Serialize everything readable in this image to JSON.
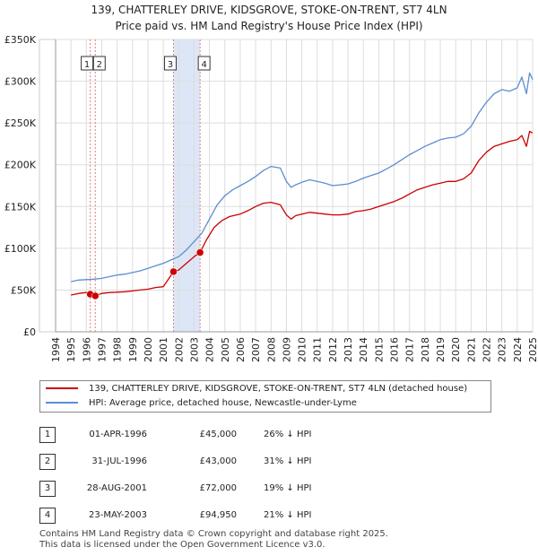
{
  "chart_data": {
    "type": "line",
    "title": "139, CHATTERLEY DRIVE, KIDSGROVE, STOKE-ON-TRENT, ST7 4LN",
    "subtitle": "Price paid vs. HM Land Registry's House Price Index (HPI)",
    "ylim": [
      0,
      350000
    ],
    "xlim": [
      1994,
      2025
    ],
    "y_tick_labels": [
      "£0",
      "£50K",
      "£100K",
      "£150K",
      "£200K",
      "£250K",
      "£300K",
      "£350K"
    ],
    "y_tick_values": [
      0,
      50000,
      100000,
      150000,
      200000,
      250000,
      300000,
      350000
    ],
    "x_tick_labels": [
      "1994",
      "1995",
      "1996",
      "1997",
      "1998",
      "1999",
      "2000",
      "2001",
      "2002",
      "2003",
      "2004",
      "2005",
      "2006",
      "2007",
      "2008",
      "2009",
      "2010",
      "2011",
      "2012",
      "2013",
      "2014",
      "2015",
      "2016",
      "2017",
      "2018",
      "2019",
      "2020",
      "2021",
      "2022",
      "2023",
      "2024",
      "2025"
    ],
    "grid": true,
    "colors": {
      "property": "#cc0000",
      "hpi": "#5b8fd1",
      "shade": "#dde6f7",
      "dash": "#e08080"
    },
    "series": [
      {
        "name": "139, CHATTERLEY DRIVE, KIDSGROVE, STOKE-ON-TRENT, ST7 4LN (detached house)",
        "color": "#cc0000",
        "x": [
          1995.0,
          1995.5,
          1996.0,
          1996.25,
          1996.58,
          1997.0,
          1997.5,
          1998.0,
          1998.5,
          1999.0,
          1999.5,
          2000.0,
          2000.5,
          2001.0,
          2001.66,
          2002.0,
          2002.5,
          2003.0,
          2003.39,
          2003.8,
          2004.3,
          2004.8,
          2005.3,
          2006.0,
          2006.5,
          2007.0,
          2007.5,
          2008.0,
          2008.6,
          2009.0,
          2009.3,
          2009.6,
          2010.0,
          2010.5,
          2011.0,
          2011.5,
          2012.0,
          2012.5,
          2013.0,
          2013.5,
          2014.0,
          2014.5,
          2015.0,
          2015.5,
          2016.0,
          2016.5,
          2017.0,
          2017.5,
          2018.0,
          2018.5,
          2019.0,
          2019.5,
          2020.0,
          2020.5,
          2021.0,
          2021.5,
          2022.0,
          2022.5,
          2023.0,
          2023.5,
          2024.0,
          2024.3,
          2024.6,
          2024.8,
          2025.0
        ],
        "y": [
          44000,
          46000,
          47000,
          45000,
          43000,
          46000,
          47000,
          47500,
          48000,
          49000,
          50000,
          51000,
          53000,
          54000,
          72000,
          74000,
          82000,
          90000,
          94950,
          110000,
          125000,
          133000,
          138000,
          141000,
          145000,
          150000,
          154000,
          155000,
          152000,
          140000,
          135000,
          139000,
          141000,
          143000,
          142000,
          141000,
          140000,
          140000,
          141000,
          144000,
          145000,
          147000,
          150000,
          153000,
          156000,
          160000,
          165000,
          170000,
          173000,
          176000,
          178000,
          180000,
          180000,
          183000,
          190000,
          205000,
          215000,
          222000,
          225000,
          228000,
          230000,
          235000,
          222000,
          240000,
          238000
        ]
      },
      {
        "name": "HPI: Average price, detached house, Newcastle-under-Lyme",
        "color": "#5b8fd1",
        "x": [
          1995.0,
          1995.5,
          1996.0,
          1996.5,
          1997.0,
          1997.5,
          1998.0,
          1998.5,
          1999.0,
          1999.5,
          2000.0,
          2000.5,
          2001.0,
          2001.5,
          2002.0,
          2002.5,
          2003.0,
          2003.5,
          2004.0,
          2004.5,
          2005.0,
          2005.5,
          2006.0,
          2006.5,
          2007.0,
          2007.5,
          2008.0,
          2008.6,
          2009.0,
          2009.3,
          2009.6,
          2010.0,
          2010.5,
          2011.0,
          2011.5,
          2012.0,
          2012.5,
          2013.0,
          2013.5,
          2014.0,
          2014.5,
          2015.0,
          2015.5,
          2016.0,
          2016.5,
          2017.0,
          2017.5,
          2018.0,
          2018.5,
          2019.0,
          2019.5,
          2020.0,
          2020.5,
          2021.0,
          2021.5,
          2022.0,
          2022.5,
          2023.0,
          2023.5,
          2024.0,
          2024.3,
          2024.6,
          2024.8,
          2025.0
        ],
        "y": [
          60000,
          62000,
          62500,
          63000,
          64000,
          66000,
          68000,
          69000,
          71000,
          73000,
          76000,
          79000,
          82000,
          86000,
          90000,
          98000,
          108000,
          118000,
          135000,
          152000,
          163000,
          170000,
          175000,
          180000,
          186000,
          193000,
          198000,
          196000,
          180000,
          173000,
          176000,
          179000,
          182000,
          180000,
          178000,
          175000,
          176000,
          177000,
          180000,
          184000,
          187000,
          190000,
          195000,
          200000,
          206000,
          212000,
          217000,
          222000,
          226000,
          230000,
          232000,
          233000,
          237000,
          246000,
          262000,
          275000,
          285000,
          290000,
          288000,
          292000,
          305000,
          285000,
          310000,
          302000
        ]
      }
    ],
    "sales": [
      {
        "label": "1",
        "x": 1996.25,
        "y": 45000
      },
      {
        "label": "2",
        "x": 1996.58,
        "y": 43000
      },
      {
        "label": "3",
        "x": 2001.66,
        "y": 72000
      },
      {
        "label": "4",
        "x": 2003.39,
        "y": 94950
      }
    ]
  },
  "legend": {
    "property_label": "139, CHATTERLEY DRIVE, KIDSGROVE, STOKE-ON-TRENT, ST7 4LN (detached house)",
    "hpi_label": "HPI: Average price, detached house, Newcastle-under-Lyme"
  },
  "sales_table": [
    {
      "num": "1",
      "date": "01-APR-1996",
      "price": "£45,000",
      "hpi": "26% ↓ HPI"
    },
    {
      "num": "2",
      "date": "31-JUL-1996",
      "price": "£43,000",
      "hpi": "31% ↓ HPI"
    },
    {
      "num": "3",
      "date": "28-AUG-2001",
      "price": "£72,000",
      "hpi": "19% ↓ HPI"
    },
    {
      "num": "4",
      "date": "23-MAY-2003",
      "price": "£94,950",
      "hpi": "21% ↓ HPI"
    }
  ],
  "footer": {
    "line1": "Contains HM Land Registry data © Crown copyright and database right 2025.",
    "line2": "This data is licensed under the Open Government Licence v3.0."
  }
}
